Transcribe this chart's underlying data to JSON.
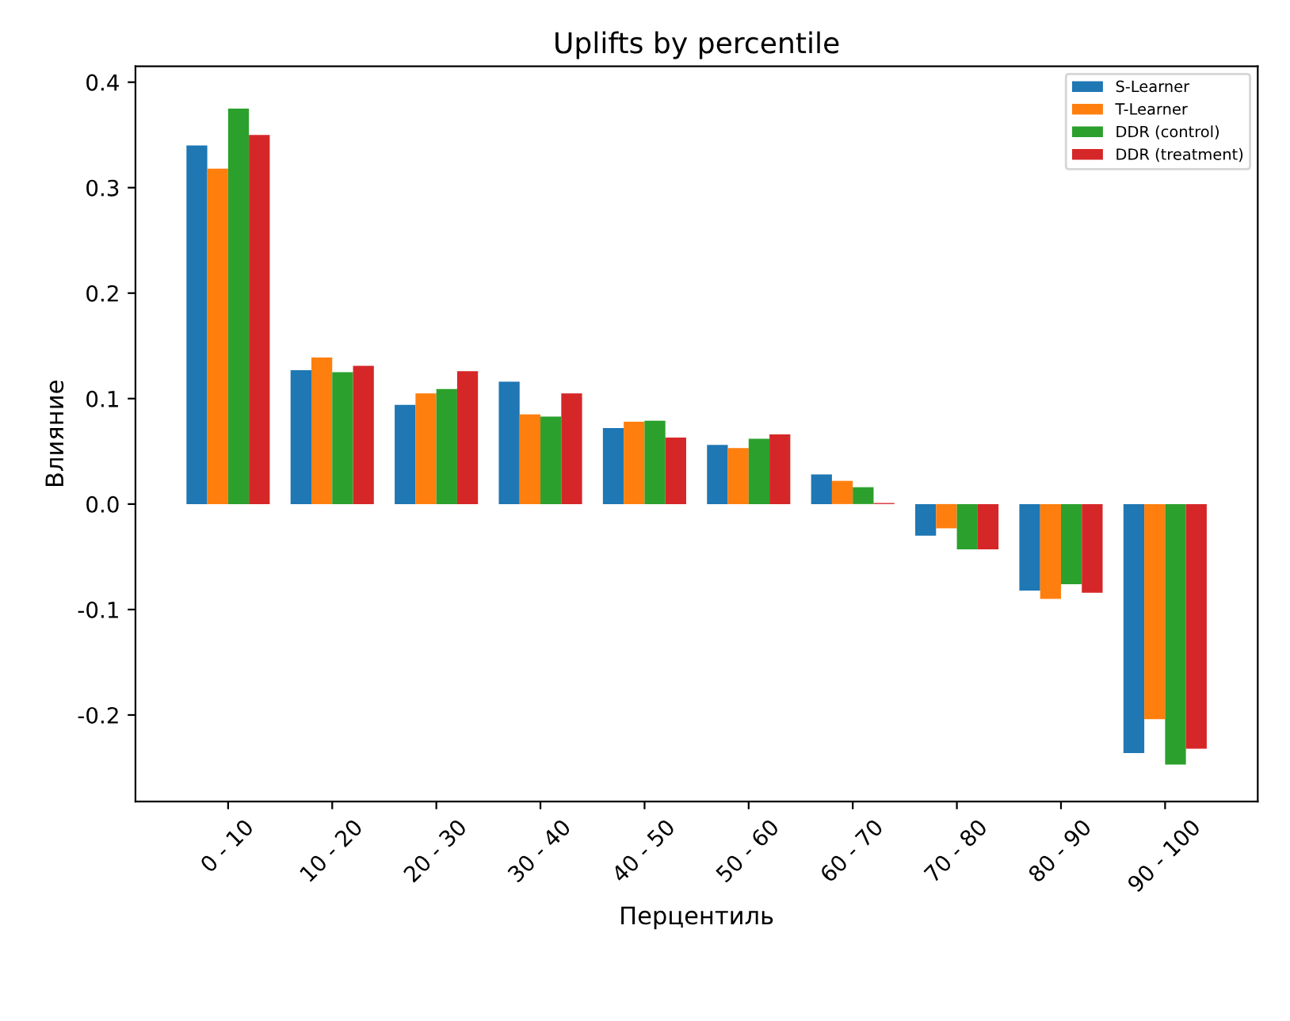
{
  "chart_data": {
    "type": "bar",
    "title": "Uplifts by percentile",
    "xlabel": "Перцентиль",
    "ylabel": "Влияние",
    "categories": [
      "0 - 10",
      "10 - 20",
      "20 - 30",
      "30 - 40",
      "40 - 50",
      "50 - 60",
      "60 - 70",
      "70 - 80",
      "80 - 90",
      "90 - 100"
    ],
    "series": [
      {
        "name": "S-Learner",
        "color": "#1f77b4",
        "values": [
          0.34,
          0.127,
          0.094,
          0.116,
          0.072,
          0.056,
          0.028,
          -0.03,
          -0.082,
          -0.236
        ]
      },
      {
        "name": "T-Learner",
        "color": "#ff7f0e",
        "values": [
          0.318,
          0.139,
          0.105,
          0.085,
          0.078,
          0.053,
          0.022,
          -0.023,
          -0.09,
          -0.204
        ]
      },
      {
        "name": "DDR (control)",
        "color": "#2ca02c",
        "values": [
          0.375,
          0.125,
          0.109,
          0.083,
          0.079,
          0.062,
          0.016,
          -0.043,
          -0.076,
          -0.247
        ]
      },
      {
        "name": "DDR (treatment)",
        "color": "#d62728",
        "values": [
          0.35,
          0.131,
          0.126,
          0.105,
          0.063,
          0.066,
          0.001,
          -0.043,
          -0.084,
          -0.232
        ]
      }
    ],
    "ylim": [
      -0.282,
      0.415
    ],
    "yticks": [
      {
        "value": -0.2,
        "label": "-0.2"
      },
      {
        "value": -0.1,
        "label": "-0.1"
      },
      {
        "value": 0,
        "label": "0.0"
      },
      {
        "value": 0.1,
        "label": "0.1"
      },
      {
        "value": 0.2,
        "label": "0.2"
      },
      {
        "value": 0.3,
        "label": "0.3"
      },
      {
        "value": 0.4,
        "label": "0.4"
      }
    ],
    "legend": "top right",
    "grid": false
  }
}
